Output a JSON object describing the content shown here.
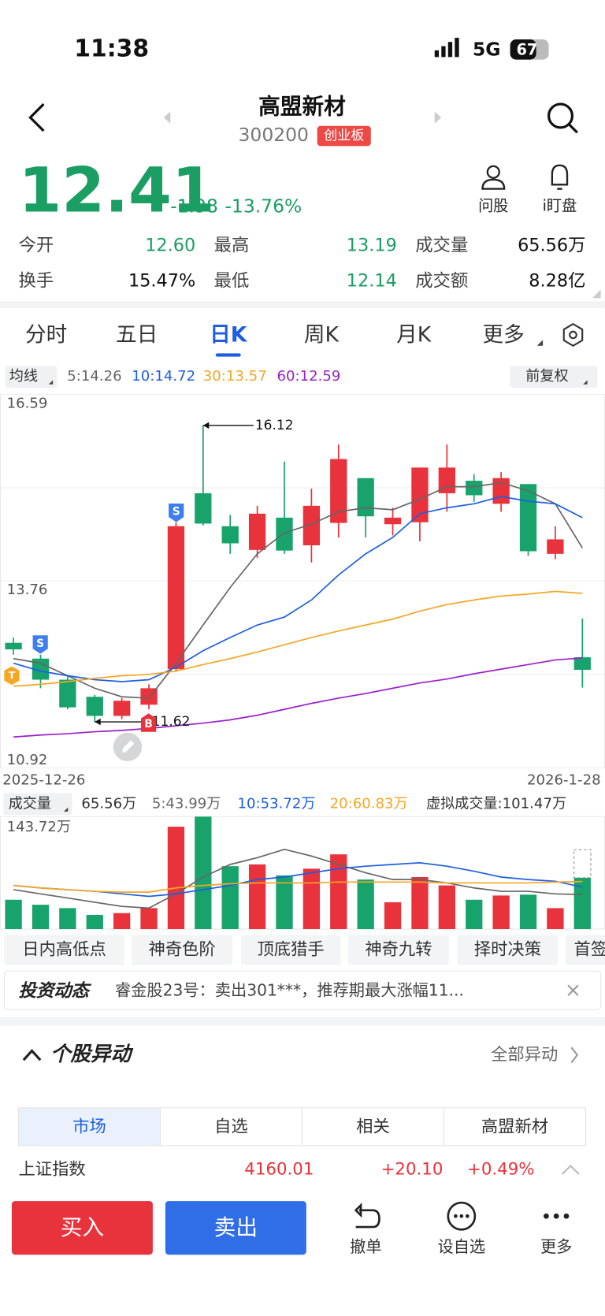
{
  "status_bar": {
    "time": "11:38",
    "network": "5G",
    "battery": "67"
  },
  "header": {
    "name": "高盟新材",
    "code": "300200",
    "board": "创业板"
  },
  "quote": {
    "price": "12.41",
    "change": "-1.98",
    "change_pct": "-13.76%"
  },
  "header_actions": [
    {
      "label": "问股"
    },
    {
      "label": "i盯盘"
    }
  ],
  "stats": [
    {
      "label": "今开",
      "value": "12.60",
      "color": "#1a9e63"
    },
    {
      "label": "最高",
      "value": "13.19",
      "color": "#1a9e63"
    },
    {
      "label": "成交量",
      "value": "65.56万",
      "color": "#111"
    },
    {
      "label": "换手",
      "value": "15.47%",
      "color": "#111"
    },
    {
      "label": "最低",
      "value": "12.14",
      "color": "#1a9e63"
    },
    {
      "label": "成交额",
      "value": "8.28亿",
      "color": "#111"
    }
  ],
  "tabs": [
    {
      "label": "分时"
    },
    {
      "label": "五日"
    },
    {
      "label": "日K",
      "selected": true
    },
    {
      "label": "周K"
    },
    {
      "label": "月K"
    },
    {
      "label": "更多"
    }
  ],
  "ma_label": "均线",
  "adjust": "前复权",
  "markers": [
    {
      "label": "S"
    },
    {
      "label": "S"
    },
    {
      "label": "B"
    },
    {
      "label": "T"
    }
  ],
  "chart_data": [
    {
      "type": "candlestick",
      "up_color": "#e8323c",
      "down_color": "#17a36b",
      "categories": [
        "2025-12-26",
        null,
        null,
        null,
        null,
        null,
        null,
        null,
        null,
        null,
        null,
        null,
        null,
        null,
        null,
        null,
        null,
        null,
        null,
        null,
        null,
        "2026-1-28"
      ],
      "open": [
        12.82,
        12.58,
        12.26,
        12.0,
        11.71,
        11.88,
        12.42,
        15.09,
        14.59,
        14.23,
        14.72,
        14.3,
        14.64,
        15.32,
        14.62,
        14.65,
        15.09,
        15.28,
        14.93,
        15.23,
        14.17,
        12.6
      ],
      "high": [
        12.9,
        12.64,
        12.32,
        12.03,
        11.98,
        12.19,
        14.65,
        16.12,
        14.76,
        14.9,
        15.57,
        15.16,
        15.83,
        15.32,
        14.87,
        15.48,
        15.83,
        15.38,
        15.41,
        15.23,
        14.59,
        13.19
      ],
      "low": [
        12.64,
        12.13,
        11.81,
        11.62,
        11.66,
        11.81,
        12.39,
        14.6,
        14.17,
        14.11,
        14.17,
        14.04,
        14.42,
        14.42,
        14.45,
        14.36,
        14.81,
        14.96,
        14.81,
        14.14,
        14.09,
        12.14
      ],
      "close": [
        12.72,
        12.26,
        11.84,
        11.71,
        11.94,
        12.13,
        14.59,
        14.63,
        14.33,
        14.78,
        14.22,
        14.9,
        15.61,
        14.74,
        14.72,
        15.48,
        15.48,
        15.06,
        15.32,
        14.21,
        14.39,
        12.41
      ],
      "series": [
        {
          "name": "5:14.26",
          "color": "#666666",
          "values": [
            12.58,
            12.51,
            12.32,
            12.13,
            12.0,
            11.98,
            12.51,
            13.09,
            13.66,
            14.17,
            14.49,
            14.62,
            14.81,
            14.87,
            14.84,
            15.0,
            15.19,
            15.19,
            15.25,
            15.13,
            14.93,
            14.26
          ]
        },
        {
          "name": "10:14.72",
          "color": "#1d5fe0",
          "values": [
            12.51,
            12.39,
            12.32,
            12.26,
            12.23,
            12.26,
            12.45,
            12.7,
            12.9,
            13.09,
            13.21,
            13.47,
            13.85,
            14.17,
            14.42,
            14.78,
            14.87,
            14.93,
            15.04,
            14.97,
            14.93,
            14.72
          ]
        },
        {
          "name": "30:13.57",
          "color": "#f5a623",
          "values": [
            12.16,
            12.19,
            12.23,
            12.28,
            12.32,
            12.34,
            12.39,
            12.49,
            12.58,
            12.68,
            12.79,
            12.9,
            13.0,
            13.09,
            13.18,
            13.3,
            13.4,
            13.47,
            13.53,
            13.56,
            13.6,
            13.57
          ]
        },
        {
          "name": "60:12.59",
          "color": "#9b1fc9",
          "values": [
            11.39,
            11.42,
            11.44,
            11.47,
            11.49,
            11.52,
            11.56,
            11.6,
            11.65,
            11.72,
            11.81,
            11.9,
            11.98,
            12.05,
            12.13,
            12.21,
            12.27,
            12.35,
            12.42,
            12.49,
            12.56,
            12.59
          ]
        }
      ],
      "ylim": [
        10.92,
        16.59
      ],
      "yticks": [
        16.59,
        13.76,
        10.92
      ],
      "grid": true
    },
    {
      "type": "bar",
      "title": "成交量",
      "current": "65.56万",
      "values": [
        37.5,
        31.1,
        26.8,
        18.2,
        20.4,
        26.8,
        130.8,
        143.72,
        80.4,
        82.6,
        68.6,
        77.2,
        95.5,
        63.3,
        34.3,
        66.5,
        55.8,
        37.5,
        42.9,
        44.0,
        26.8,
        65.56
      ],
      "colors": [
        "#17a36b",
        "#17a36b",
        "#17a36b",
        "#17a36b",
        "#e8323c",
        "#e8323c",
        "#e8323c",
        "#17a36b",
        "#17a36b",
        "#e8323c",
        "#17a36b",
        "#e8323c",
        "#e8323c",
        "#17a36b",
        "#e8323c",
        "#e8323c",
        "#e8323c",
        "#17a36b",
        "#e8323c",
        "#17a36b",
        "#e8323c",
        "#17a36b"
      ],
      "virtual_label": "虚拟成交量:101.47万",
      "virtual_value": 101.47,
      "series": [
        {
          "name": "5:43.99万",
          "color": "#666666",
          "values": [
            50.4,
            45.0,
            39.7,
            34.3,
            29.0,
            26.8,
            45.0,
            66.5,
            82.6,
            91.2,
            101.9,
            93.3,
            82.6,
            71.9,
            63.3,
            63.3,
            59.0,
            52.6,
            48.3,
            48.3,
            45.0,
            43.99
          ]
        },
        {
          "name": "10:53.72万",
          "color": "#1d5fe0",
          "values": [
            55.8,
            52.6,
            50.4,
            48.3,
            45.0,
            41.8,
            45.0,
            50.4,
            55.8,
            63.3,
            66.5,
            71.9,
            77.2,
            80.4,
            82.6,
            84.7,
            80.4,
            74.0,
            66.5,
            63.3,
            61.1,
            53.72
          ]
        },
        {
          "name": "20:60.83万",
          "color": "#f5a623",
          "values": [
            55.8,
            52.6,
            50.4,
            48.3,
            47.2,
            47.2,
            52.6,
            55.8,
            57.9,
            59.0,
            59.0,
            59.0,
            60.1,
            60.1,
            60.1,
            60.1,
            59.0,
            59.0,
            59.0,
            59.0,
            60.1,
            60.83
          ]
        }
      ],
      "ylim": [
        0,
        143.72
      ],
      "yticks": [
        {
          "value": 143.72,
          "label": "143.72万"
        }
      ]
    }
  ],
  "indicators": [
    "日内高低点",
    "神奇色阶",
    "顶底猎手",
    "神奇九转",
    "择时决策",
    "首签"
  ],
  "news": {
    "title": "投资动态",
    "text": "睿金股23号：卖出301***，推荐期最大涨幅11..."
  },
  "movement": {
    "title": "个股异动",
    "more": "全部异动",
    "tabs": [
      "市场",
      "自选",
      "相关",
      "高盟新材"
    ],
    "row": {
      "name": "上证指数",
      "price": "4160.01",
      "change": "+20.10",
      "pct": "+0.49%"
    }
  },
  "bottom_bar": {
    "buy": "买入",
    "sell": "卖出",
    "actions": [
      "撤单",
      "设自选",
      "更多"
    ]
  }
}
